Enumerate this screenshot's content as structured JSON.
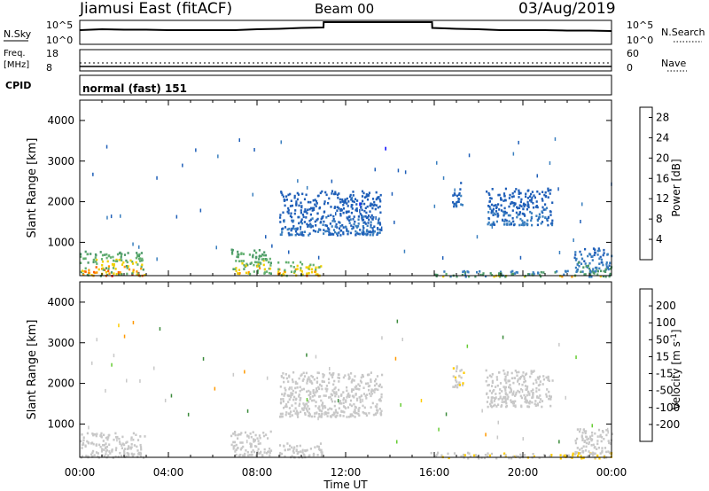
{
  "header": {
    "station": "Jiamusi East (fitACF)",
    "beam": "Beam 00",
    "date": "03/Aug/2019"
  },
  "strip": {
    "nsky": {
      "label": "N.Sky",
      "tick_top": "10^5",
      "tick_bottom": "10^0"
    },
    "nsearch": {
      "label": "N.Search",
      "tick_top": "10^5",
      "tick_bottom": "10^0"
    },
    "freq": {
      "label_line1": "Freq.",
      "label_line2": "[MHz]",
      "tick_top": "18",
      "tick_bottom": "8"
    },
    "nave": {
      "label": "Nave",
      "tick_top": "60",
      "tick_bottom": "0"
    },
    "cpid": {
      "label": "CPID",
      "mode": "normal (fast) 151"
    }
  },
  "colors": {
    "power_scale": [
      "#0000ff",
      "#1f5fb8",
      "#3a7fbf",
      "#4e9a6a",
      "#63b070",
      "#f0d000",
      "#ff9900",
      "#ff6000",
      "#ff0000"
    ],
    "velocity_scale": [
      "#1010c0",
      "#3355cc",
      "#3a8a3a",
      "#66cc33",
      "#c8c8c8",
      "#c8c8c8",
      "#ffcc00",
      "#ff9900",
      "#ff6600",
      "#e60000"
    ],
    "ground_scatter": "#a0a0a0"
  },
  "chart_data": [
    {
      "type": "heatmap",
      "panel": "power",
      "xlabel": "",
      "ylabel": "Slant Range [km]",
      "xlim_hours_ut": [
        0,
        24
      ],
      "ylim": [
        180,
        4500
      ],
      "y_ticks": [
        "1000",
        "2000",
        "3000",
        "4000"
      ],
      "colorbar": {
        "label": "Power [dB]",
        "ticks": [
          "4",
          "8",
          "12",
          "16",
          "20",
          "24",
          "28"
        ],
        "range": [
          0,
          30
        ]
      },
      "echo_regions": [
        {
          "t0": 0.0,
          "t1": 2.9,
          "r0": 200,
          "r1": 800,
          "value": 12,
          "peak": 26
        },
        {
          "t0": 6.8,
          "t1": 8.6,
          "r0": 250,
          "r1": 850,
          "value": 12,
          "peak": 22
        },
        {
          "t0": 8.9,
          "t1": 10.9,
          "r0": 200,
          "r1": 550,
          "value": 14,
          "peak": 24
        },
        {
          "t0": 9.0,
          "t1": 13.6,
          "r0": 1200,
          "r1": 2300,
          "value": 4,
          "peak": 8
        },
        {
          "t0": 16.8,
          "t1": 17.3,
          "r0": 1900,
          "r1": 2500,
          "value": 5,
          "peak": 8
        },
        {
          "t0": 18.3,
          "t1": 21.3,
          "r0": 1450,
          "r1": 2350,
          "value": 5,
          "peak": 8
        },
        {
          "t0": 22.3,
          "t1": 24.0,
          "r0": 300,
          "r1": 900,
          "value": 6,
          "peak": 12
        },
        {
          "t0": 15.8,
          "t1": 24.0,
          "r0": 180,
          "r1": 320,
          "value": 8,
          "peak": 18
        }
      ]
    },
    {
      "type": "heatmap",
      "panel": "velocity",
      "xlabel": "Time UT",
      "ylabel": "Slant Range [km]",
      "x_ticks": [
        "00:00",
        "04:00",
        "08:00",
        "12:00",
        "16:00",
        "20:00",
        "00:00"
      ],
      "xlim_hours_ut": [
        0,
        24
      ],
      "ylim": [
        180,
        4500
      ],
      "y_ticks": [
        "1000",
        "2000",
        "3000",
        "4000"
      ],
      "colorbar": {
        "label": "Velocity [m s^-1]",
        "ticks": [
          "200",
          "100",
          "50",
          "15",
          "-15",
          "-50",
          "-100",
          "-200"
        ],
        "range": [
          -250,
          250
        ]
      },
      "echo_regions": [
        {
          "t0": 0.0,
          "t1": 2.9,
          "r0": 200,
          "r1": 800,
          "value": 0,
          "note": "ground scatter"
        },
        {
          "t0": 6.8,
          "t1": 8.6,
          "r0": 250,
          "r1": 850,
          "value": 0,
          "note": "ground scatter"
        },
        {
          "t0": 8.9,
          "t1": 10.9,
          "r0": 200,
          "r1": 550,
          "value": 0,
          "note": "ground scatter"
        },
        {
          "t0": 9.0,
          "t1": 13.6,
          "r0": 1200,
          "r1": 2300,
          "value": 0,
          "note": "ground scatter"
        },
        {
          "t0": 16.8,
          "t1": 17.3,
          "r0": 1900,
          "r1": 2500,
          "value": -40
        },
        {
          "t0": 18.3,
          "t1": 21.3,
          "r0": 1450,
          "r1": 2350,
          "value": 30
        },
        {
          "t0": 22.3,
          "t1": 24.0,
          "r0": 300,
          "r1": 900,
          "value": 0,
          "note": "ground scatter"
        },
        {
          "t0": 15.8,
          "t1": 24.0,
          "r0": 180,
          "r1": 320,
          "value": -40
        }
      ]
    },
    {
      "type": "line",
      "panel": "nsky",
      "xlim_hours_ut": [
        0,
        24
      ],
      "log_y": true,
      "x": [
        0,
        1,
        2,
        3,
        4,
        5,
        6,
        7,
        8,
        9,
        10,
        11,
        11.01,
        15.9,
        15.91,
        17,
        18,
        19,
        20,
        21,
        22,
        23,
        24
      ],
      "y": [
        3.0,
        3.2,
        3.1,
        3.1,
        3.0,
        3.0,
        3.0,
        3.0,
        3.2,
        3.3,
        3.5,
        3.6,
        4.8,
        4.8,
        3.5,
        3.3,
        3.2,
        3.0,
        3.0,
        3.0,
        2.9,
        2.9,
        2.8
      ]
    }
  ]
}
